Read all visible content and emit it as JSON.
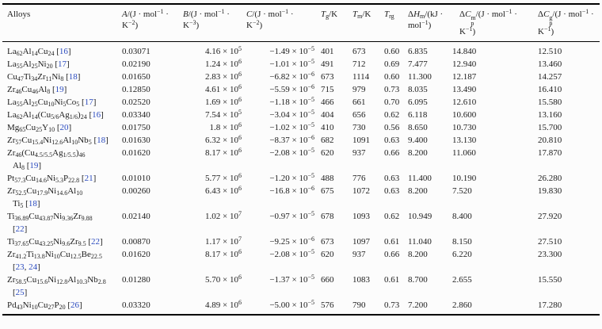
{
  "page": {
    "background": "#fcfcfc",
    "text_color": "#1c1c1c",
    "ref_link_color": "#2b4bbf",
    "rule_color": "#000000"
  },
  "table": {
    "headers": [
      {
        "id": "alloys",
        "label": "Alloys"
      },
      {
        "id": "A",
        "label": "*{A}/(J · mol^{−1} ·\nK^{−2})"
      },
      {
        "id": "B",
        "label": "*{B}/(J · mol^{−1} ·\nK^{−3})"
      },
      {
        "id": "C",
        "label": "*{C}/(J · mol^{−1} ·\nK^{−2})"
      },
      {
        "id": "Tg",
        "label": "*{T}_{g}/K"
      },
      {
        "id": "Tm",
        "label": "*{T}_{m}/K"
      },
      {
        "id": "Trg",
        "label": "*{T}_{rg}"
      },
      {
        "id": "dHm",
        "label": "Δ*{H}_{m}/(kJ ·\nmol^{−1})"
      },
      {
        "id": "dCpm",
        "label": "Δ*{C}@{m|p}/(J · mol^{−1} ·\nK^{−1})"
      },
      {
        "id": "dCpg",
        "label": "Δ*{C}@{g|p}/(J · mol^{−1} ·\nK^{−1})"
      }
    ],
    "rows": [
      {
        "alloy": "La_{62}Al_{14}Cu_{24} [16]",
        "values": [
          "0.03071",
          "4.16 × 10^{5}",
          "−1.49 × 10^{−5}",
          "401",
          "673",
          "0.60",
          "6.835",
          "14.840",
          "12.510"
        ]
      },
      {
        "alloy": "La_{55}Al_{25}Ni_{20} [17]",
        "values": [
          "0.02190",
          "1.24 × 10^{6}",
          "−1.01 × 10^{−5}",
          "491",
          "712",
          "0.69",
          "7.477",
          "12.940",
          "13.460"
        ]
      },
      {
        "alloy": "Cu_{47}Ti_{34}Zr_{11}Ni_{8} [18]",
        "values": [
          "0.01650",
          "2.83 × 10^{6}",
          "−6.82 × 10^{−6}",
          "673",
          "1114",
          "0.60",
          "11.300",
          "12.187",
          "14.257"
        ]
      },
      {
        "alloy": "Zr_{46}Cu_{46}Al_{8} [19]",
        "values": [
          "0.12850",
          "4.61 × 10^{6}",
          "−5.59 × 10^{−6}",
          "715",
          "979",
          "0.73",
          "8.035",
          "13.490",
          "16.410"
        ]
      },
      {
        "alloy": "La_{55}Al_{25}Cu_{10}Ni_{5}Co_{5} [17]",
        "values": [
          "0.02520",
          "1.69 × 10^{6}",
          "−1.18 × 10^{−5}",
          "466",
          "661",
          "0.70",
          "6.095",
          "12.610",
          "15.580"
        ]
      },
      {
        "alloy": "La_{62}Al_{14}(Cu_{5/6}Ag_{1/6})_{24} [16]",
        "values": [
          "0.03340",
          "7.54 × 10^{5}",
          "−3.04 × 10^{−5}",
          "404",
          "656",
          "0.62",
          "6.118",
          "10.600",
          "13.160"
        ]
      },
      {
        "alloy": "Mg_{65}Cu_{25}Y_{10} [20]",
        "values": [
          "0.01750",
          "1.8 × 10^{6}",
          "−1.02 × 10^{−5}",
          "410",
          "730",
          "0.56",
          "8.650",
          "10.730",
          "15.700"
        ]
      },
      {
        "alloy": "Zr_{57}Cu_{15.4}Ni_{12.6}Al_{10}Nb_{5} [18]",
        "values": [
          "0.01630",
          "6.32 × 10^{6}",
          "−8.37 × 10^{−6}",
          "682",
          "1091",
          "0.63",
          "9.400",
          "13.130",
          "20.810"
        ]
      },
      {
        "alloy": "Zr_{46}(Cu_{4.5/5.5}Ag_{1/5.5})_{46}\nAl_{8} [19]",
        "values": [
          "0.01620",
          "8.17 × 10^{6}",
          "−2.08 × 10^{−5}",
          "620",
          "937",
          "0.66",
          "8.200",
          "11.060",
          "17.870"
        ]
      },
      {
        "alloy": "Pt_{57.3}Cu_{14.6}Ni_{5.3}P_{22.8} [21]",
        "values": [
          "0.01010",
          "5.77 × 10^{6}",
          "−1.20 × 10^{−5}",
          "488",
          "776",
          "0.63",
          "11.400",
          "10.190",
          "26.280"
        ]
      },
      {
        "alloy": "Zr_{52.5}Cu_{17.9}Ni_{14.6}Al_{10}\nTi_{5} [18]",
        "values": [
          "0.00260",
          "6.43 × 10^{6}",
          "−16.8 × 10^{−6}",
          "675",
          "1072",
          "0.63",
          "8.200",
          "7.520",
          "19.830"
        ]
      },
      {
        "alloy": "Ti_{36.89}Cu_{43.87}Ni_{9.36}Zr_{9.88}\n[22]",
        "values": [
          "0.02140",
          "1.02 × 10^{7}",
          "−0.97 × 10^{−5}",
          "678",
          "1093",
          "0.62",
          "10.949",
          "8.400",
          "27.920"
        ]
      },
      {
        "alloy": "Ti_{37.65}Cu_{43.25}Ni_{9.6}Zr_{9.5} [22]",
        "values": [
          "0.00870",
          "1.17 × 10^{7}",
          "−9.25 × 10^{−6}",
          "673",
          "1097",
          "0.61",
          "11.040",
          "8.150",
          "27.510"
        ]
      },
      {
        "alloy": "Zr_{41.2}Ti_{13.8}Ni_{10}Cu_{12.5}Be_{22.5}\n[23, 24]",
        "values": [
          "0.01620",
          "8.17 × 10^{6}",
          "−2.08 × 10^{−5}",
          "620",
          "937",
          "0.66",
          "8.200",
          "6.220",
          "23.300"
        ]
      },
      {
        "alloy": "Zr_{58.5}Cu_{15.6}Ni_{12.8}Al_{10.3}Nb_{2.8}\n[25]",
        "values": [
          "0.01280",
          "5.70 × 10^{6}",
          "−1.37 × 10^{−5}",
          "660",
          "1083",
          "0.61",
          "8.700",
          "2.655",
          "15.550"
        ]
      },
      {
        "alloy": "Pd_{43}Ni_{10}Cu_{27}P_{20} [26]",
        "values": [
          "0.03320",
          "4.89 × 10^{6}",
          "−5.00 × 10^{−5}",
          "576",
          "790",
          "0.73",
          "7.200",
          "2.860",
          "17.280"
        ]
      }
    ]
  }
}
